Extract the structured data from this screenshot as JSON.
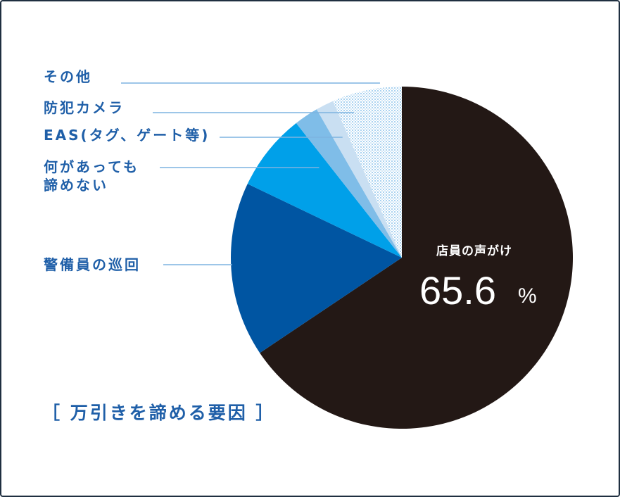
{
  "chart_data": {
    "type": "pie",
    "caption": "［ 万引きを諦める要因 ］",
    "slices": [
      {
        "label": "店員の声がけ",
        "value": 65.6,
        "value_label": "65.6",
        "unit_label": "%",
        "color": "#231815"
      },
      {
        "label": "警備員の巡回",
        "value": 16.5,
        "color": "#0055a2"
      },
      {
        "label": "何があっても\n諦めない",
        "value": 7.3,
        "color": "#00a0e9"
      },
      {
        "label": "EAS(タグ、ゲート等)",
        "value": 2.3,
        "color": "#7fbde8"
      },
      {
        "label": "防犯カメラ",
        "value": 1.7,
        "color": "#c9dff2"
      },
      {
        "label": "その他",
        "value": 6.6,
        "color": "#a9d2f0",
        "pattern": "dots"
      }
    ]
  },
  "colors": {
    "label_text": "#1f5fa8",
    "leader_line": "#7db3e0",
    "caption_text": "#1f5fa8",
    "center_text": "#ffffff",
    "frame_border": "#1f2f40"
  }
}
